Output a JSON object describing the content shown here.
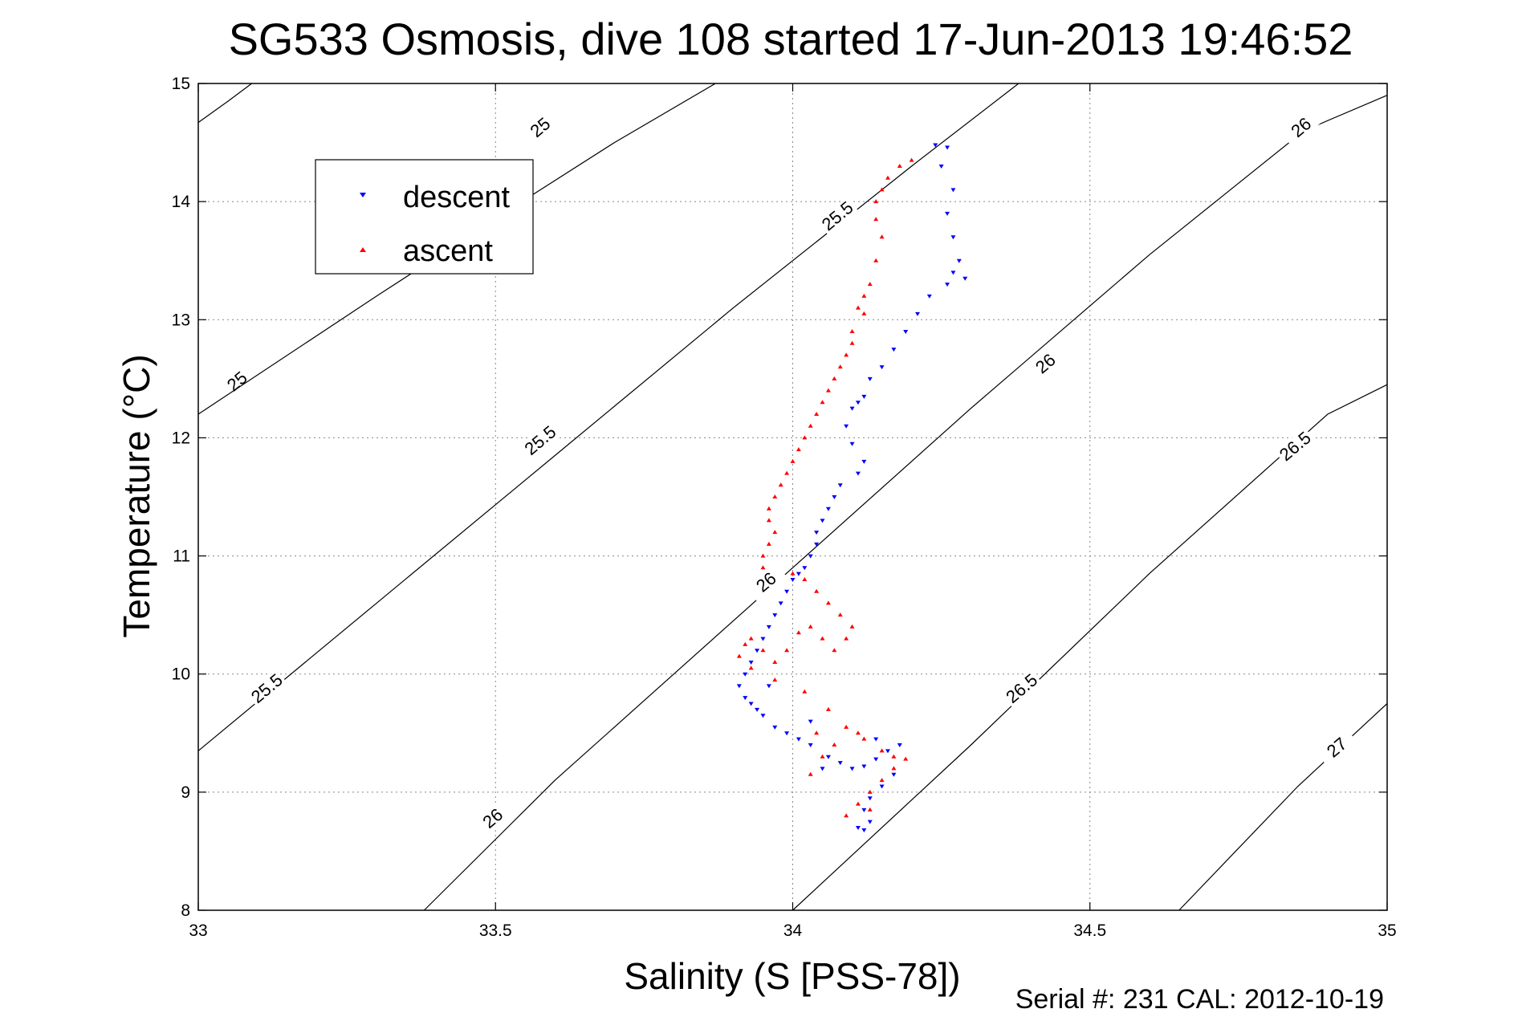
{
  "chart_data": {
    "type": "scatter",
    "title": "SG533 Osmosis, dive 108 started 17-Jun-2013 19:46:52",
    "xlabel": "Salinity (S [PSS-78])",
    "ylabel": "Temperature (°C)",
    "xlim": [
      33,
      35
    ],
    "ylim": [
      8,
      15
    ],
    "xticks": [
      33,
      33.5,
      34,
      34.5,
      35
    ],
    "xtick_labels": [
      "33",
      "33.5",
      "34",
      "34.5",
      "35"
    ],
    "yticks": [
      8,
      9,
      10,
      11,
      12,
      13,
      14,
      15
    ],
    "ytick_labels": [
      "8",
      "9",
      "10",
      "11",
      "12",
      "13",
      "14",
      "15"
    ],
    "grid": true,
    "legend_position": "top-left",
    "footer": "Serial #: 231  CAL: 2012-10-19",
    "series": [
      {
        "name": "descent",
        "color": "#0000ff",
        "marker": "triangle-down",
        "x": [
          34.24,
          34.26,
          34.25,
          34.27,
          34.26,
          34.27,
          34.28,
          34.27,
          34.29,
          34.26,
          34.23,
          34.21,
          34.19,
          34.17,
          34.15,
          34.13,
          34.12,
          34.11,
          34.1,
          34.09,
          34.1,
          34.12,
          34.11,
          34.08,
          34.07,
          34.06,
          34.05,
          34.04,
          34.04,
          34.03,
          34.02,
          34.01,
          34.0,
          33.99,
          33.98,
          33.97,
          33.96,
          33.95,
          33.94,
          33.93,
          33.92,
          33.91,
          33.92,
          33.94,
          33.95,
          33.97,
          33.99,
          34.01,
          34.03,
          34.06,
          34.08,
          34.1,
          34.12,
          34.14,
          34.16,
          34.18,
          34.17,
          34.15,
          34.13,
          34.12,
          34.13,
          34.11,
          34.12,
          34.14,
          33.93,
          33.96,
          34.03,
          34.05
        ],
        "y": [
          14.48,
          14.46,
          14.3,
          14.1,
          13.9,
          13.7,
          13.5,
          13.4,
          13.35,
          13.3,
          13.2,
          13.05,
          12.9,
          12.75,
          12.6,
          12.5,
          12.35,
          12.3,
          12.25,
          12.1,
          11.95,
          11.8,
          11.7,
          11.6,
          11.5,
          11.4,
          11.3,
          11.2,
          11.1,
          11.0,
          10.9,
          10.85,
          10.8,
          10.7,
          10.6,
          10.5,
          10.4,
          10.3,
          10.2,
          10.1,
          10.0,
          9.9,
          9.8,
          9.7,
          9.65,
          9.55,
          9.5,
          9.45,
          9.4,
          9.3,
          9.25,
          9.2,
          9.22,
          9.28,
          9.35,
          9.4,
          9.15,
          9.05,
          8.95,
          8.85,
          8.75,
          8.7,
          8.68,
          9.45,
          9.75,
          9.9,
          9.6,
          9.2
        ]
      },
      {
        "name": "ascent",
        "color": "#ff0000",
        "marker": "triangle-up",
        "x": [
          34.2,
          34.18,
          34.16,
          34.15,
          34.14,
          34.14,
          34.15,
          34.14,
          34.13,
          34.12,
          34.11,
          34.12,
          34.1,
          34.1,
          34.09,
          34.08,
          34.07,
          34.06,
          34.05,
          34.04,
          34.03,
          34.02,
          34.01,
          34.0,
          33.99,
          33.98,
          33.97,
          33.96,
          33.96,
          33.97,
          33.96,
          33.95,
          33.95,
          34.0,
          34.02,
          34.04,
          34.06,
          34.08,
          34.1,
          34.09,
          34.07,
          34.05,
          34.03,
          34.01,
          33.99,
          33.97,
          33.95,
          33.93,
          33.92,
          33.91,
          33.93,
          33.97,
          34.02,
          34.06,
          34.09,
          34.12,
          34.15,
          34.17,
          34.19,
          34.17,
          34.15,
          34.13,
          34.11,
          34.09,
          34.07,
          34.05,
          34.03,
          34.04,
          34.11,
          34.13
        ],
        "y": [
          14.35,
          14.3,
          14.2,
          14.1,
          14.0,
          13.85,
          13.7,
          13.5,
          13.3,
          13.2,
          13.1,
          13.05,
          12.9,
          12.8,
          12.7,
          12.6,
          12.5,
          12.4,
          12.3,
          12.2,
          12.1,
          12.0,
          11.9,
          11.8,
          11.7,
          11.6,
          11.5,
          11.4,
          11.3,
          11.2,
          11.1,
          11.0,
          10.9,
          10.85,
          10.8,
          10.7,
          10.6,
          10.5,
          10.4,
          10.3,
          10.2,
          10.3,
          10.4,
          10.35,
          10.2,
          10.1,
          10.2,
          10.3,
          10.25,
          10.15,
          10.05,
          9.95,
          9.85,
          9.7,
          9.55,
          9.45,
          9.35,
          9.3,
          9.28,
          9.2,
          9.1,
          9.0,
          8.9,
          8.8,
          9.4,
          9.3,
          9.15,
          9.5,
          9.5,
          8.85
        ]
      }
    ],
    "contours": [
      {
        "label": "25",
        "path": [
          [
            33.0,
            14.67
          ],
          [
            33.05,
            14.85
          ],
          [
            33.09,
            15.0
          ]
        ],
        "label_positions": [
          [
            33.58,
            14.6
          ],
          [
            33.07,
            12.45
          ]
        ]
      },
      {
        "label": "25",
        "path": [
          [
            33.0,
            12.2
          ],
          [
            33.3,
            13.2
          ],
          [
            33.56,
            14.05
          ],
          [
            33.7,
            14.5
          ],
          [
            33.87,
            15.0
          ]
        ]
      },
      {
        "label": "25.5",
        "path": [
          [
            33.0,
            9.35
          ],
          [
            33.3,
            10.6
          ],
          [
            33.6,
            11.85
          ],
          [
            33.9,
            13.1
          ],
          [
            34.2,
            14.3
          ],
          [
            34.38,
            15.0
          ]
        ],
        "label_positions": [
          [
            34.08,
            13.85
          ],
          [
            33.58,
            11.95
          ],
          [
            33.12,
            9.85
          ]
        ]
      },
      {
        "label": "26",
        "path": [
          [
            33.38,
            8.0
          ],
          [
            33.6,
            9.1
          ],
          [
            33.8,
            10.0
          ],
          [
            34.0,
            10.9
          ],
          [
            34.3,
            12.25
          ],
          [
            34.6,
            13.55
          ],
          [
            34.86,
            14.6
          ],
          [
            35.0,
            14.9
          ]
        ],
        "label_positions": [
          [
            34.86,
            14.6
          ],
          [
            34.43,
            12.6
          ],
          [
            33.96,
            10.75
          ],
          [
            33.5,
            8.75
          ]
        ]
      },
      {
        "label": "26.5",
        "path": [
          [
            34.0,
            8.0
          ],
          [
            34.3,
            9.4
          ],
          [
            34.6,
            10.85
          ],
          [
            34.9,
            12.2
          ],
          [
            35.0,
            12.45
          ]
        ],
        "label_positions": [
          [
            34.85,
            11.9
          ],
          [
            34.39,
            9.85
          ]
        ]
      },
      {
        "label": "27",
        "path": [
          [
            34.65,
            8.0
          ],
          [
            34.85,
            9.05
          ],
          [
            35.0,
            9.75
          ]
        ],
        "label_positions": [
          [
            34.92,
            9.35
          ]
        ]
      }
    ]
  }
}
